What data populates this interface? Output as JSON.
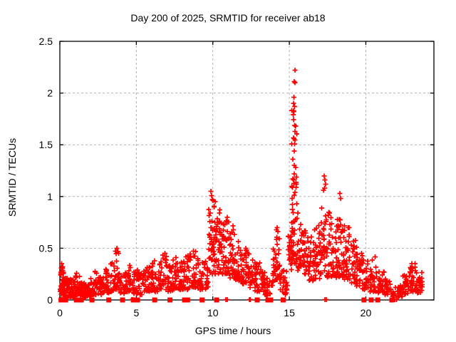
{
  "chart_data": {
    "type": "scatter",
    "title": "Day 200 of 2025, SRMTID for receiver ab18",
    "xlabel": "GPS time / hours",
    "ylabel": "SRMTID / TECUs",
    "xlim": [
      0,
      24.45
    ],
    "ylim": [
      0,
      2.5
    ],
    "xticks": [
      0,
      5,
      10,
      15,
      20
    ],
    "xtick_labels": [
      "0",
      "5",
      "10",
      "15",
      "20"
    ],
    "yticks": [
      0,
      0.5,
      1,
      1.5,
      2,
      2.5
    ],
    "ytick_labels": [
      "0",
      "0.5",
      "1",
      "1.5",
      "2",
      "2.5"
    ],
    "grid": true,
    "legend": "none",
    "marker": "plus",
    "marker_color": "#ff0000",
    "grid_color": "#b0b0b0",
    "axis_color": "#000000",
    "background_color": "#ffffff",
    "peak_value": 2.22,
    "peak_time": 15.38,
    "density_bins_comment": "each bin = [t_start_hours, t_end_hours, y_min_TECUs, y_max_TECUs, point_count, low_bias_exponent] describing the dense overplotted scatter band",
    "density_bins": [
      [
        0.0,
        0.3,
        0.05,
        0.38,
        34,
        2.0
      ],
      [
        0.3,
        0.65,
        0.03,
        0.22,
        40,
        1.5
      ],
      [
        0.65,
        1.0,
        0.03,
        0.2,
        42,
        1.5
      ],
      [
        1.0,
        1.3,
        0.05,
        0.26,
        28,
        1.6
      ],
      [
        1.3,
        1.6,
        0.04,
        0.18,
        32,
        1.5
      ],
      [
        1.6,
        2.0,
        0.03,
        0.16,
        36,
        1.4
      ],
      [
        2.0,
        2.4,
        0.05,
        0.28,
        28,
        1.7
      ],
      [
        2.4,
        2.8,
        0.05,
        0.22,
        28,
        1.5
      ],
      [
        2.8,
        3.2,
        0.07,
        0.3,
        28,
        1.6
      ],
      [
        3.2,
        3.6,
        0.08,
        0.36,
        26,
        1.7
      ],
      [
        3.6,
        3.9,
        0.1,
        0.5,
        24,
        1.8
      ],
      [
        3.9,
        4.3,
        0.06,
        0.28,
        26,
        1.5
      ],
      [
        4.3,
        4.7,
        0.08,
        0.34,
        26,
        1.6
      ],
      [
        4.7,
        5.1,
        0.06,
        0.3,
        25,
        1.5
      ],
      [
        5.1,
        5.5,
        0.05,
        0.28,
        25,
        1.5
      ],
      [
        5.5,
        6.0,
        0.08,
        0.32,
        30,
        1.5
      ],
      [
        6.0,
        6.5,
        0.08,
        0.38,
        30,
        1.6
      ],
      [
        6.5,
        7.0,
        0.1,
        0.46,
        30,
        1.7
      ],
      [
        7.0,
        7.4,
        0.08,
        0.36,
        27,
        1.5
      ],
      [
        7.4,
        7.9,
        0.1,
        0.43,
        30,
        1.6
      ],
      [
        7.9,
        8.4,
        0.1,
        0.46,
        32,
        1.6
      ],
      [
        8.4,
        8.9,
        0.12,
        0.48,
        30,
        1.6
      ],
      [
        8.9,
        9.3,
        0.1,
        0.43,
        26,
        1.6
      ],
      [
        9.3,
        9.7,
        0.1,
        0.38,
        24,
        1.5
      ],
      [
        9.7,
        10.05,
        0.25,
        0.98,
        30,
        1.5
      ],
      [
        10.05,
        10.35,
        0.25,
        0.92,
        28,
        1.5
      ],
      [
        10.35,
        10.7,
        0.25,
        0.85,
        32,
        1.5
      ],
      [
        10.7,
        11.1,
        0.25,
        0.78,
        34,
        1.5
      ],
      [
        11.1,
        11.5,
        0.2,
        0.72,
        32,
        1.5
      ],
      [
        11.5,
        11.9,
        0.18,
        0.58,
        28,
        1.5
      ],
      [
        11.9,
        12.3,
        0.15,
        0.5,
        28,
        1.5
      ],
      [
        12.3,
        12.7,
        0.12,
        0.46,
        26,
        1.5
      ],
      [
        12.7,
        13.1,
        0.08,
        0.38,
        26,
        1.5
      ],
      [
        13.1,
        13.4,
        0.08,
        0.3,
        20,
        1.5
      ],
      [
        13.4,
        13.9,
        0.04,
        0.22,
        26,
        1.4
      ],
      [
        13.9,
        14.15,
        0.15,
        0.5,
        18,
        1.6
      ],
      [
        14.15,
        14.4,
        0.18,
        0.7,
        20,
        1.5
      ],
      [
        14.4,
        14.9,
        0.05,
        0.3,
        26,
        1.5
      ],
      [
        14.9,
        15.15,
        0.25,
        0.62,
        20,
        1.4
      ],
      [
        15.15,
        15.32,
        0.35,
        1.95,
        30,
        1.5
      ],
      [
        15.32,
        15.5,
        0.35,
        1.7,
        24,
        1.6
      ],
      [
        15.5,
        15.8,
        0.28,
        0.95,
        26,
        1.5
      ],
      [
        15.8,
        16.2,
        0.25,
        0.68,
        28,
        1.4
      ],
      [
        16.2,
        16.6,
        0.18,
        0.62,
        28,
        1.4
      ],
      [
        16.6,
        17.0,
        0.2,
        0.72,
        30,
        1.4
      ],
      [
        17.0,
        17.4,
        0.25,
        1.08,
        32,
        1.6
      ],
      [
        17.4,
        17.8,
        0.22,
        0.85,
        30,
        1.5
      ],
      [
        17.8,
        18.2,
        0.2,
        0.78,
        30,
        1.5
      ],
      [
        18.2,
        18.6,
        0.22,
        0.92,
        32,
        1.6
      ],
      [
        18.6,
        19.0,
        0.2,
        0.75,
        32,
        1.5
      ],
      [
        19.0,
        19.4,
        0.15,
        0.58,
        28,
        1.4
      ],
      [
        19.4,
        19.8,
        0.12,
        0.46,
        26,
        1.4
      ],
      [
        19.8,
        20.2,
        0.1,
        0.4,
        26,
        1.4
      ],
      [
        20.2,
        20.7,
        0.08,
        0.42,
        28,
        1.5
      ],
      [
        20.7,
        21.2,
        0.06,
        0.33,
        26,
        1.4
      ],
      [
        21.2,
        21.7,
        0.05,
        0.22,
        24,
        1.3
      ],
      [
        21.7,
        22.4,
        0.03,
        0.14,
        30,
        1.2
      ],
      [
        22.4,
        22.8,
        0.05,
        0.25,
        26,
        1.4
      ],
      [
        22.8,
        23.3,
        0.08,
        0.36,
        30,
        1.5
      ],
      [
        23.3,
        23.7,
        0.07,
        0.28,
        26,
        1.4
      ]
    ],
    "notable_points_comment": "distinct individually-readable markers [t_hours, TECUs]",
    "notable_points": [
      [
        15.38,
        2.22
      ],
      [
        15.33,
        2.11
      ],
      [
        15.36,
        2.1
      ],
      [
        15.31,
        1.96
      ],
      [
        15.28,
        1.9
      ],
      [
        15.34,
        1.87
      ],
      [
        15.3,
        1.82
      ],
      [
        15.26,
        1.79
      ],
      [
        15.37,
        1.63
      ],
      [
        15.3,
        1.56
      ],
      [
        15.24,
        1.36
      ],
      [
        15.33,
        1.3
      ],
      [
        15.41,
        1.28
      ],
      [
        15.28,
        1.16
      ],
      [
        15.36,
        1.04
      ],
      [
        9.88,
        1.05
      ],
      [
        9.93,
        1.01
      ],
      [
        9.96,
        0.97
      ],
      [
        10.15,
        0.95
      ],
      [
        10.45,
        0.87
      ],
      [
        10.95,
        0.8
      ],
      [
        17.28,
        1.2
      ],
      [
        17.33,
        1.16
      ],
      [
        17.38,
        1.12
      ],
      [
        17.31,
        1.08
      ],
      [
        18.3,
        1.03
      ],
      [
        18.34,
        0.98
      ],
      [
        0.12,
        0.35
      ],
      [
        3.72,
        0.5
      ],
      [
        3.75,
        0.47
      ],
      [
        6.88,
        0.45
      ],
      [
        14.2,
        0.7
      ],
      [
        14.24,
        0.66
      ],
      [
        23.0,
        0.35
      ]
    ],
    "zero_square_markers_x": [
      0.08,
      0.15,
      0.22,
      0.3,
      0.38,
      1.08,
      1.4,
      2.1,
      3.2,
      4.1,
      4.8,
      5.08,
      6.2,
      7.2,
      8.15,
      8.35,
      9.3,
      10.25,
      12.9,
      13.6,
      13.78,
      14.6,
      19.88,
      20.35,
      20.78,
      21.7
    ],
    "zero_plus_markers_x": [
      0.06,
      0.12,
      0.2,
      0.3,
      1.5,
      4.7,
      4.78,
      10.85,
      10.95,
      12.38,
      12.46,
      17.32,
      17.42,
      21.9,
      22.0
    ]
  }
}
